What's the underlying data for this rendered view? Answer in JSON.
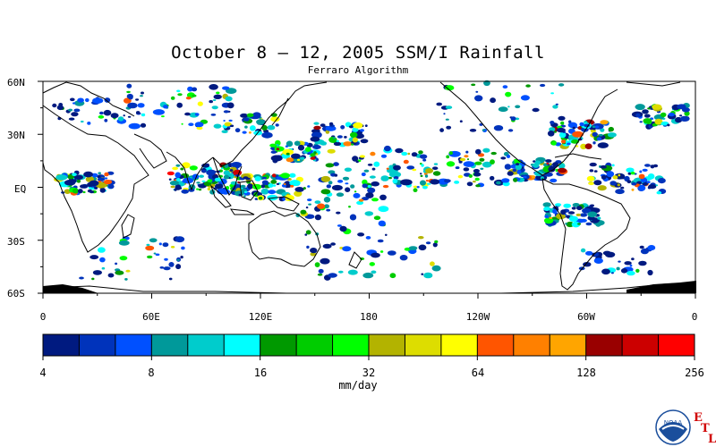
{
  "title": "October 8 – 12, 2005 SSM/I Rainfall",
  "subtitle": "Ferraro Algorithm",
  "map": {
    "lat_labels": [
      "60N",
      "30N",
      "EQ",
      "30S",
      "60S"
    ],
    "lon_labels": [
      "0",
      "60E",
      "120E",
      "180",
      "120W",
      "60W",
      "0"
    ],
    "land_color": "#ffffff",
    "ice_color": "#000000"
  },
  "colorbar": {
    "colors": [
      "#001a80",
      "#0033bb",
      "#0050ff",
      "#00999a",
      "#00cccc",
      "#00ffff",
      "#009900",
      "#00cc00",
      "#00ff00",
      "#b3b300",
      "#dddd00",
      "#ffff00",
      "#ff5500",
      "#ff8000",
      "#ffa500",
      "#990000",
      "#cc0000",
      "#ff0000"
    ],
    "tick_labels": [
      "4",
      "8",
      "16",
      "32",
      "64",
      "128",
      "256"
    ],
    "units": "mm/day"
  },
  "logo": {
    "noaa_text": "NOAA",
    "etl_letters": [
      "E",
      "T",
      "L"
    ]
  }
}
